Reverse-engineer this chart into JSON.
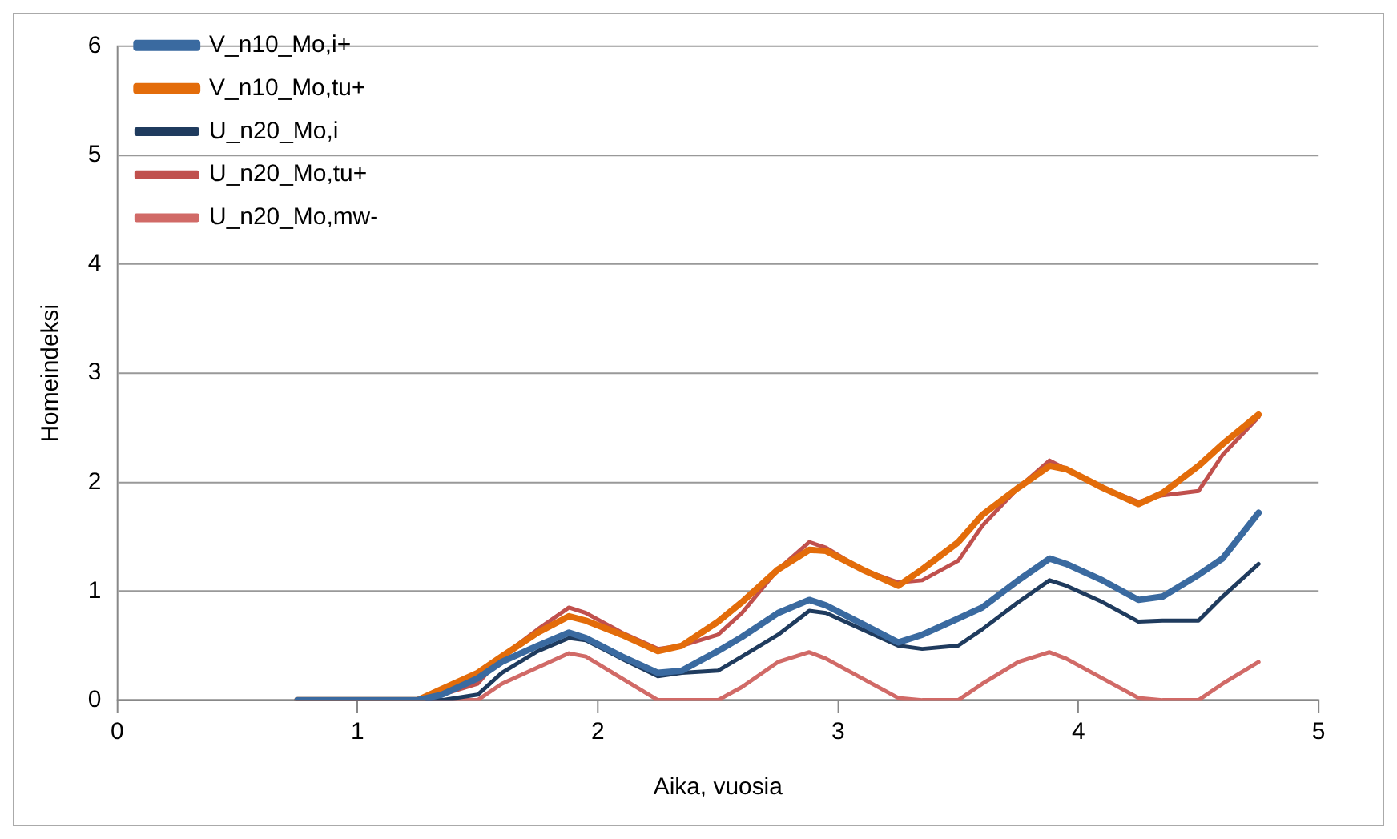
{
  "chart_data": {
    "type": "line",
    "xlabel": "Aika, vuosia",
    "ylabel": "Homeindeksi",
    "x": [
      0.75,
      1.0,
      1.25,
      1.35,
      1.5,
      1.6,
      1.75,
      1.88,
      1.95,
      2.1,
      2.25,
      2.35,
      2.5,
      2.6,
      2.75,
      2.88,
      2.95,
      3.1,
      3.25,
      3.35,
      3.5,
      3.6,
      3.75,
      3.88,
      3.95,
      4.1,
      4.25,
      4.35,
      4.5,
      4.6,
      4.75
    ],
    "series": [
      {
        "name": "V_n10_Mo,i+",
        "color": "#3a6aa0",
        "values": [
          0,
          0,
          0,
          0.05,
          0.2,
          0.35,
          0.5,
          0.62,
          0.57,
          0.4,
          0.25,
          0.27,
          0.45,
          0.58,
          0.8,
          0.92,
          0.87,
          0.7,
          0.53,
          0.6,
          0.75,
          0.85,
          1.1,
          1.3,
          1.25,
          1.1,
          0.92,
          0.95,
          1.15,
          1.3,
          1.72
        ]
      },
      {
        "name": "V_n10_Mo,tu+",
        "color": "#e36c0a",
        "values": [
          0,
          0,
          0,
          0.1,
          0.25,
          0.4,
          0.62,
          0.77,
          0.73,
          0.6,
          0.45,
          0.5,
          0.72,
          0.9,
          1.2,
          1.38,
          1.37,
          1.2,
          1.05,
          1.2,
          1.45,
          1.7,
          1.95,
          2.15,
          2.12,
          1.95,
          1.8,
          1.9,
          2.15,
          2.35,
          2.62
        ]
      },
      {
        "name": "U_n20_Mo,i",
        "color": "#1f3b5e",
        "values": [
          0,
          0,
          0,
          0,
          0.05,
          0.25,
          0.45,
          0.57,
          0.55,
          0.38,
          0.22,
          0.25,
          0.27,
          0.4,
          0.6,
          0.82,
          0.8,
          0.65,
          0.5,
          0.47,
          0.5,
          0.65,
          0.9,
          1.1,
          1.05,
          0.9,
          0.72,
          0.73,
          0.73,
          0.95,
          1.25
        ]
      },
      {
        "name": "U_n20_Mo,tu+",
        "color": "#c0504d",
        "values": [
          0,
          0,
          0,
          0.05,
          0.15,
          0.4,
          0.65,
          0.85,
          0.8,
          0.62,
          0.47,
          0.5,
          0.6,
          0.8,
          1.2,
          1.45,
          1.4,
          1.2,
          1.08,
          1.1,
          1.28,
          1.6,
          1.95,
          2.2,
          2.12,
          1.95,
          1.82,
          1.88,
          1.92,
          2.25,
          2.6
        ]
      },
      {
        "name": "U_n20_Mo,mw-",
        "color": "#d16a67",
        "values": [
          0,
          0,
          0,
          0,
          0,
          0.15,
          0.3,
          0.43,
          0.4,
          0.2,
          0,
          0,
          0,
          0.12,
          0.35,
          0.44,
          0.38,
          0.2,
          0.02,
          0,
          0,
          0.15,
          0.35,
          0.44,
          0.38,
          0.2,
          0.02,
          0,
          0,
          0.15,
          0.35
        ]
      }
    ],
    "xlim": [
      0,
      5
    ],
    "xticks": [
      0,
      1,
      2,
      3,
      4,
      5
    ],
    "ylim": [
      0,
      6
    ],
    "yticks": [
      0,
      1,
      2,
      3,
      4,
      5,
      6
    ],
    "grid": "y",
    "legend": "top left",
    "marker": "none",
    "line_style": "solid"
  }
}
